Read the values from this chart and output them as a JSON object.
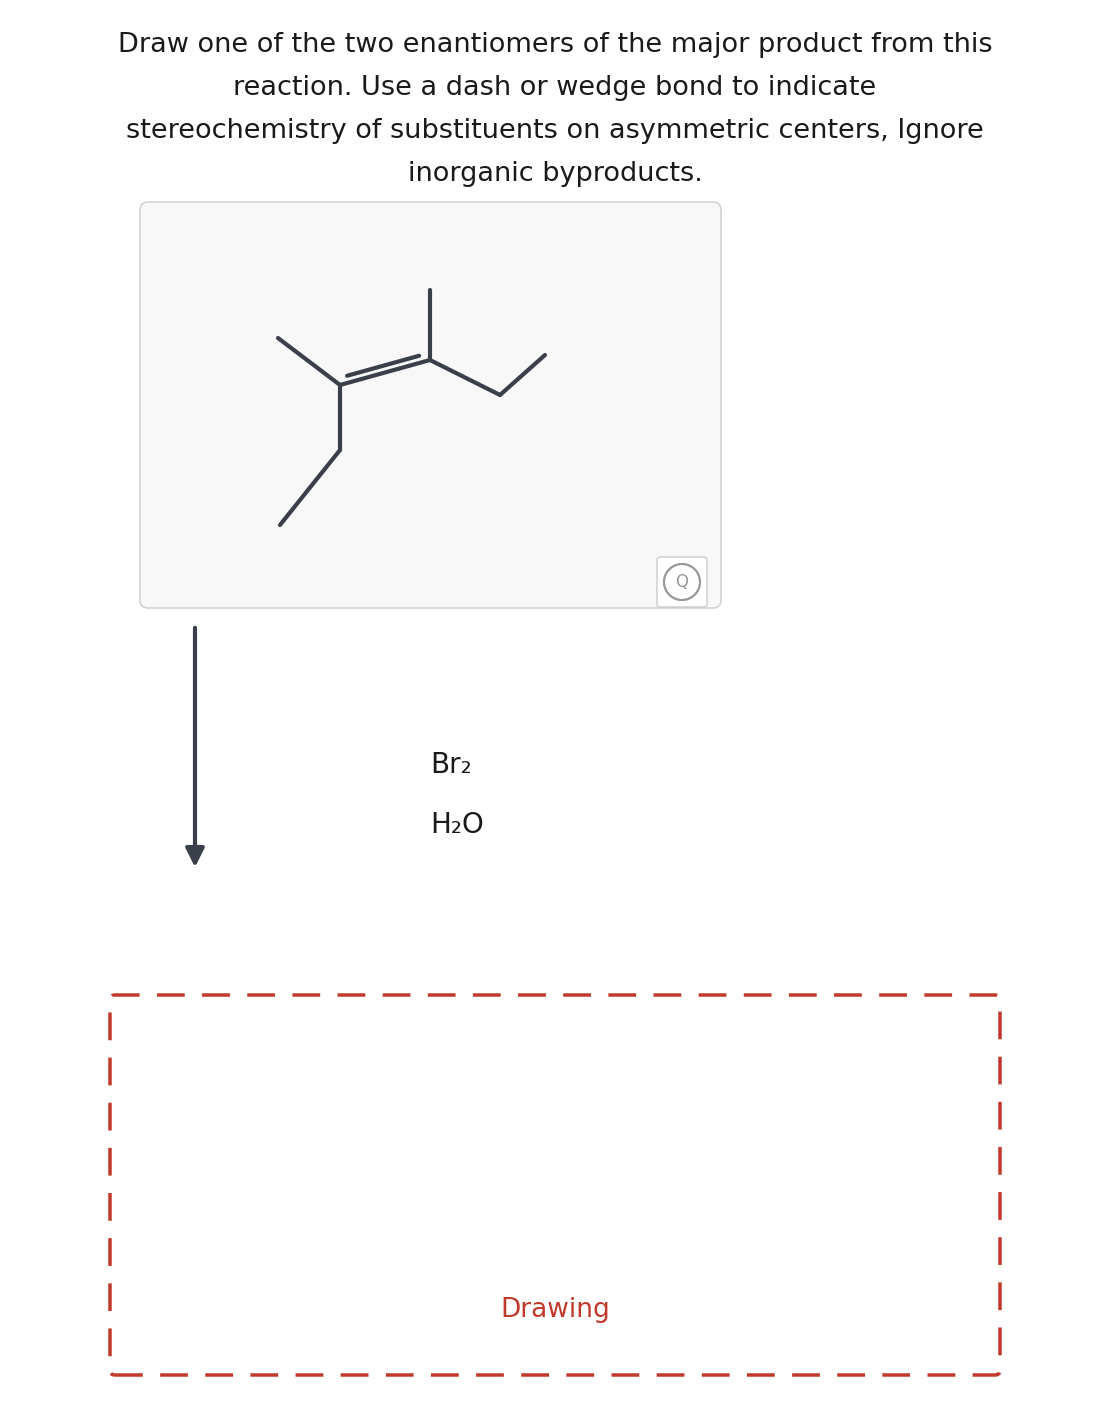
{
  "title_lines": [
    "Draw one of the two enantiomers of the major product from this",
    "reaction. Use a dash or wedge bond to indicate",
    "stereochemistry of substituents on asymmetric centers, Ignore",
    "inorganic byproducts."
  ],
  "title_fontsize": 19.5,
  "bg_color": "#ffffff",
  "molecule_color": "#3a3f4a",
  "arrow_color": "#3a3f4a",
  "reagent_color": "#1a1a1a",
  "dashed_box_color": "#c0392b",
  "drawing_label_color": "#c0392b",
  "drawing_label": "Drawing",
  "reagent1": "Br₂",
  "reagent2": "H₂O"
}
